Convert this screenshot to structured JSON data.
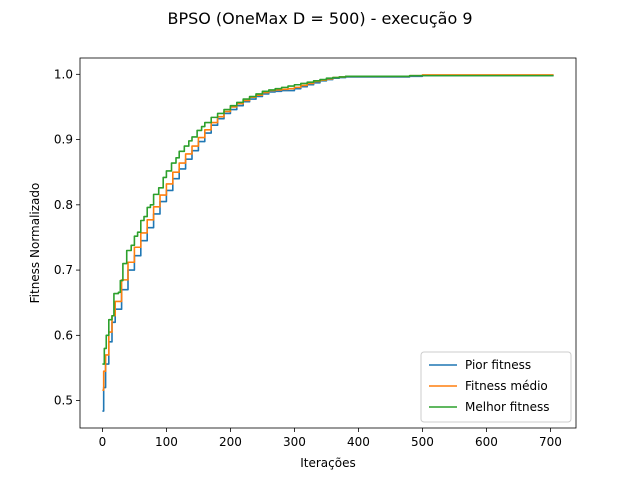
{
  "chart_data": {
    "type": "line",
    "title": "BPSO (OneMax D = 500) - execução 9",
    "xlabel": "Iterações",
    "ylabel": "Fitness Normalizado",
    "xlim": [
      -35,
      740
    ],
    "ylim": [
      0.458,
      1.025
    ],
    "xticks": [
      0,
      100,
      200,
      300,
      400,
      500,
      600,
      700
    ],
    "yticks": [
      0.5,
      0.6,
      0.7,
      0.8,
      0.9,
      1.0
    ],
    "grid": false,
    "legend_position": "lower-right",
    "series": [
      {
        "name": "Pior fitness",
        "color": "#1f77b4",
        "points": [
          [
            0,
            0.484
          ],
          [
            2,
            0.52
          ],
          [
            5,
            0.556
          ],
          [
            10,
            0.59
          ],
          [
            15,
            0.62
          ],
          [
            20,
            0.64
          ],
          [
            30,
            0.67
          ],
          [
            40,
            0.7
          ],
          [
            50,
            0.722
          ],
          [
            60,
            0.745
          ],
          [
            70,
            0.765
          ],
          [
            80,
            0.786
          ],
          [
            90,
            0.805
          ],
          [
            100,
            0.822
          ],
          [
            110,
            0.84
          ],
          [
            120,
            0.855
          ],
          [
            130,
            0.87
          ],
          [
            140,
            0.883
          ],
          [
            150,
            0.897
          ],
          [
            160,
            0.91
          ],
          [
            170,
            0.922
          ],
          [
            180,
            0.932
          ],
          [
            190,
            0.94
          ],
          [
            200,
            0.946
          ],
          [
            210,
            0.952
          ],
          [
            220,
            0.958
          ],
          [
            230,
            0.962
          ],
          [
            240,
            0.966
          ],
          [
            250,
            0.97
          ],
          [
            260,
            0.973
          ],
          [
            270,
            0.974
          ],
          [
            280,
            0.975
          ],
          [
            290,
            0.975
          ],
          [
            300,
            0.978
          ],
          [
            310,
            0.981
          ],
          [
            320,
            0.984
          ],
          [
            330,
            0.987
          ],
          [
            340,
            0.99
          ],
          [
            350,
            0.992
          ],
          [
            360,
            0.994
          ],
          [
            370,
            0.995
          ],
          [
            380,
            0.996
          ],
          [
            400,
            0.996
          ],
          [
            450,
            0.996
          ],
          [
            480,
            0.997
          ],
          [
            500,
            0.998
          ],
          [
            600,
            0.998
          ],
          [
            700,
            0.998
          ],
          [
            705,
            0.998
          ]
        ]
      },
      {
        "name": "Fitness médio",
        "color": "#ff7f0e",
        "points": [
          [
            0,
            0.516
          ],
          [
            2,
            0.545
          ],
          [
            5,
            0.57
          ],
          [
            10,
            0.605
          ],
          [
            15,
            0.63
          ],
          [
            20,
            0.652
          ],
          [
            30,
            0.685
          ],
          [
            40,
            0.712
          ],
          [
            50,
            0.735
          ],
          [
            60,
            0.757
          ],
          [
            70,
            0.777
          ],
          [
            80,
            0.797
          ],
          [
            90,
            0.815
          ],
          [
            100,
            0.832
          ],
          [
            110,
            0.85
          ],
          [
            120,
            0.864
          ],
          [
            130,
            0.878
          ],
          [
            140,
            0.89
          ],
          [
            150,
            0.903
          ],
          [
            160,
            0.915
          ],
          [
            170,
            0.926
          ],
          [
            180,
            0.935
          ],
          [
            190,
            0.943
          ],
          [
            200,
            0.95
          ],
          [
            210,
            0.955
          ],
          [
            220,
            0.96
          ],
          [
            230,
            0.965
          ],
          [
            240,
            0.968
          ],
          [
            250,
            0.972
          ],
          [
            260,
            0.975
          ],
          [
            270,
            0.976
          ],
          [
            280,
            0.977
          ],
          [
            290,
            0.978
          ],
          [
            300,
            0.98
          ],
          [
            310,
            0.983
          ],
          [
            320,
            0.986
          ],
          [
            330,
            0.989
          ],
          [
            340,
            0.991
          ],
          [
            350,
            0.993
          ],
          [
            360,
            0.995
          ],
          [
            370,
            0.996
          ],
          [
            380,
            0.997
          ],
          [
            400,
            0.997
          ],
          [
            450,
            0.997
          ],
          [
            480,
            0.998
          ],
          [
            500,
            0.999
          ],
          [
            600,
            0.999
          ],
          [
            700,
            0.999
          ],
          [
            705,
            0.999
          ]
        ]
      },
      {
        "name": "Melhor fitness",
        "color": "#2ca02c",
        "points": [
          [
            0,
            0.556
          ],
          [
            3,
            0.58
          ],
          [
            6,
            0.6
          ],
          [
            10,
            0.624
          ],
          [
            15,
            0.63
          ],
          [
            18,
            0.664
          ],
          [
            25,
            0.666
          ],
          [
            28,
            0.684
          ],
          [
            32,
            0.71
          ],
          [
            38,
            0.73
          ],
          [
            45,
            0.738
          ],
          [
            50,
            0.752
          ],
          [
            55,
            0.758
          ],
          [
            60,
            0.776
          ],
          [
            65,
            0.782
          ],
          [
            70,
            0.796
          ],
          [
            75,
            0.8
          ],
          [
            80,
            0.816
          ],
          [
            88,
            0.826
          ],
          [
            95,
            0.842
          ],
          [
            100,
            0.852
          ],
          [
            108,
            0.864
          ],
          [
            115,
            0.872
          ],
          [
            120,
            0.882
          ],
          [
            128,
            0.89
          ],
          [
            135,
            0.898
          ],
          [
            140,
            0.904
          ],
          [
            148,
            0.914
          ],
          [
            155,
            0.92
          ],
          [
            160,
            0.926
          ],
          [
            170,
            0.934
          ],
          [
            180,
            0.94
          ],
          [
            190,
            0.946
          ],
          [
            200,
            0.952
          ],
          [
            210,
            0.957
          ],
          [
            220,
            0.962
          ],
          [
            230,
            0.966
          ],
          [
            240,
            0.97
          ],
          [
            250,
            0.974
          ],
          [
            260,
            0.976
          ],
          [
            270,
            0.978
          ],
          [
            280,
            0.98
          ],
          [
            290,
            0.982
          ],
          [
            300,
            0.984
          ],
          [
            310,
            0.986
          ],
          [
            320,
            0.988
          ],
          [
            330,
            0.99
          ],
          [
            340,
            0.992
          ],
          [
            350,
            0.994
          ],
          [
            360,
            0.995
          ],
          [
            370,
            0.996
          ],
          [
            380,
            0.997
          ],
          [
            400,
            0.997
          ],
          [
            450,
            0.997
          ],
          [
            480,
            0.998
          ],
          [
            500,
            0.998
          ],
          [
            600,
            0.998
          ],
          [
            700,
            0.998
          ],
          [
            705,
            0.998
          ]
        ]
      }
    ]
  }
}
